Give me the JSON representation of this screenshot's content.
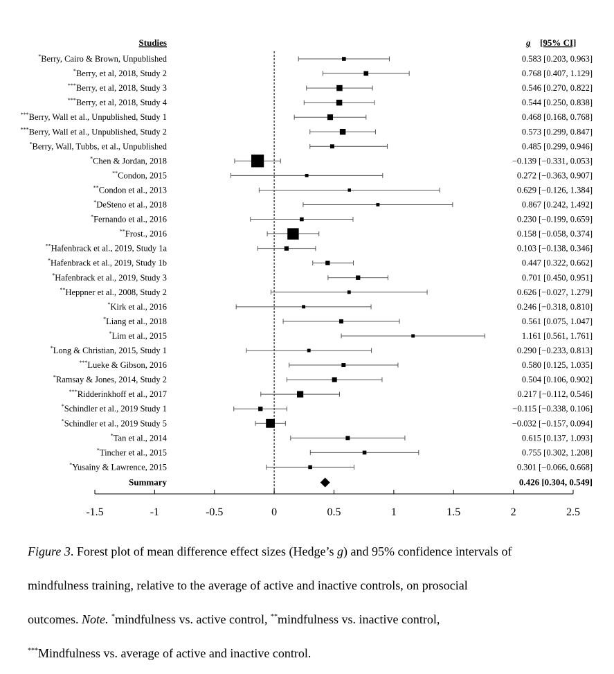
{
  "chart_data": {
    "type": "forest",
    "header": {
      "studies": "Studies",
      "g": "g",
      "ci": "[95% CI]"
    },
    "rows": [
      {
        "mark": "*",
        "name": "Berry, Cairo & Brown, Unpublished",
        "g": 0.583,
        "lo": 0.203,
        "hi": 0.963,
        "stat": "0.583 [0.203, 0.963]",
        "weight": 1.0
      },
      {
        "mark": "*",
        "name": "Berry, et al, 2018, Study 2",
        "g": 0.768,
        "lo": 0.407,
        "hi": 1.129,
        "stat": "0.768 [0.407, 1.129]",
        "weight": 1.3
      },
      {
        "mark": "***",
        "name": "Berry, et al, 2018, Study 3",
        "g": 0.546,
        "lo": 0.27,
        "hi": 0.822,
        "stat": "0.546 [0.270, 0.822]",
        "weight": 1.8
      },
      {
        "mark": "***",
        "name": "Berry, et al, 2018, Study 4",
        "g": 0.544,
        "lo": 0.25,
        "hi": 0.838,
        "stat": "0.544 [0.250, 0.838]",
        "weight": 1.8
      },
      {
        "mark": "***",
        "name": "Berry, Wall et al., Unpublished, Study 1",
        "g": 0.468,
        "lo": 0.168,
        "hi": 0.768,
        "stat": "0.468 [0.168, 0.768]",
        "weight": 1.7
      },
      {
        "mark": "***",
        "name": "Berry, Wall et al., Unpublished, Study 2",
        "g": 0.573,
        "lo": 0.299,
        "hi": 0.847,
        "stat": "0.573 [0.299, 0.847]",
        "weight": 1.8
      },
      {
        "mark": "*",
        "name": "Berry, Wall, Tubbs, et al., Unpublished",
        "g": 0.485,
        "lo": 0.299,
        "hi": 0.946,
        "stat": "0.485 [0.299, 0.946]",
        "weight": 1.1
      },
      {
        "mark": "*",
        "name": "Chen & Jordan, 2018",
        "g": -0.139,
        "lo": -0.331,
        "hi": 0.053,
        "stat": "−0.139 [−0.331, 0.053]",
        "weight": 4.5
      },
      {
        "mark": "**",
        "name": "Condon, 2015",
        "g": 0.272,
        "lo": -0.363,
        "hi": 0.907,
        "stat": "0.272 [−0.363, 0.907]",
        "weight": 0.8
      },
      {
        "mark": "**",
        "name": "Condon et al., 2013",
        "g": 0.629,
        "lo": -0.126,
        "hi": 1.384,
        "stat": "0.629 [−0.126, 1.384]",
        "weight": 0.7
      },
      {
        "mark": "*",
        "name": "DeSteno et al., 2018",
        "g": 0.867,
        "lo": 0.242,
        "hi": 1.492,
        "stat": "0.867 [0.242, 1.492]",
        "weight": 0.8
      },
      {
        "mark": "*",
        "name": "Fernando et al., 2016",
        "g": 0.23,
        "lo": -0.199,
        "hi": 0.659,
        "stat": "0.230 [−0.199, 0.659]",
        "weight": 1.0
      },
      {
        "mark": "**",
        "name": "Frost., 2016",
        "g": 0.158,
        "lo": -0.058,
        "hi": 0.374,
        "stat": "0.158 [−0.058, 0.374]",
        "weight": 4.0
      },
      {
        "mark": "**",
        "name": "Hafenbrack et al., 2019, Study 1a",
        "g": 0.103,
        "lo": -0.138,
        "hi": 0.346,
        "stat": "0.103 [−0.138, 0.346]",
        "weight": 1.2
      },
      {
        "mark": "*",
        "name": "Hafenbrack et al., 2019, Study 1b",
        "g": 0.447,
        "lo": 0.322,
        "hi": 0.662,
        "stat": "0.447 [0.322, 0.662]",
        "weight": 1.2
      },
      {
        "mark": "*",
        "name": "Hafenbrack et al., 2019, Study 3",
        "g": 0.701,
        "lo": 0.45,
        "hi": 0.951,
        "stat": "0.701 [0.450, 0.951]",
        "weight": 1.2
      },
      {
        "mark": "**",
        "name": "Heppner et al., 2008, Study 2",
        "g": 0.626,
        "lo": -0.027,
        "hi": 1.279,
        "stat": "0.626 [−0.027, 1.279]",
        "weight": 0.8
      },
      {
        "mark": "*",
        "name": "Kirk et al., 2016",
        "g": 0.246,
        "lo": -0.318,
        "hi": 0.81,
        "stat": "0.246 [−0.318, 0.810]",
        "weight": 0.8
      },
      {
        "mark": "*",
        "name": "Liang et al., 2018",
        "g": 0.561,
        "lo": 0.075,
        "hi": 1.047,
        "stat": "0.561 [0.075, 1.047]",
        "weight": 1.1
      },
      {
        "mark": "*",
        "name": "Lim et al., 2015",
        "g": 1.161,
        "lo": 0.561,
        "hi": 1.761,
        "stat": "1.161 [0.561, 1.761]",
        "weight": 0.8
      },
      {
        "mark": "*",
        "name": "Long & Christian, 2015, Study 1",
        "g": 0.29,
        "lo": -0.233,
        "hi": 0.813,
        "stat": "0.290 [−0.233, 0.813]",
        "weight": 0.8
      },
      {
        "mark": "***",
        "name": "Lueke & Gibson, 2016",
        "g": 0.58,
        "lo": 0.125,
        "hi": 1.035,
        "stat": "0.580 [0.125, 1.035]",
        "weight": 1.1
      },
      {
        "mark": "*",
        "name": "Ramsay & Jones, 2014, Study 2",
        "g": 0.504,
        "lo": 0.106,
        "hi": 0.902,
        "stat": "0.504 [0.106, 0.902]",
        "weight": 1.4
      },
      {
        "mark": "***",
        "name": "Ridderinkhoff et al., 2017",
        "g": 0.217,
        "lo": -0.112,
        "hi": 0.546,
        "stat": "0.217 [−0.112, 0.546]",
        "weight": 2.0
      },
      {
        "mark": "*",
        "name": "Schindler et al., 2019 Study 1",
        "g": -0.115,
        "lo": -0.338,
        "hi": 0.106,
        "stat": "−0.115 [−0.338, 0.106]",
        "weight": 1.2
      },
      {
        "mark": "*",
        "name": "Schindler et al., 2019 Study 5",
        "g": -0.032,
        "lo": -0.157,
        "hi": 0.094,
        "stat": "−0.032 [−0.157, 0.094]",
        "weight": 3.0
      },
      {
        "mark": "*",
        "name": "Tan et al., 2014",
        "g": 0.615,
        "lo": 0.137,
        "hi": 1.093,
        "stat": "0.615 [0.137, 1.093]",
        "weight": 1.1
      },
      {
        "mark": "*",
        "name": "Tincher et al., 2015",
        "g": 0.755,
        "lo": 0.302,
        "hi": 1.208,
        "stat": "0.755 [0.302, 1.208]",
        "weight": 1.0
      },
      {
        "mark": "*",
        "name": "Yusainy & Lawrence, 2015",
        "g": 0.301,
        "lo": -0.066,
        "hi": 0.668,
        "stat": "0.301 [−0.066, 0.668]",
        "weight": 1.0
      }
    ],
    "summary": {
      "name": "Summary",
      "g": 0.426,
      "lo": 0.304,
      "hi": 0.549,
      "stat": "0.426 [0.304, 0.549]"
    },
    "xlim": [
      -1.5,
      2.5
    ],
    "xticks": [
      -1.5,
      -1,
      -0.5,
      0,
      0.5,
      1,
      1.5,
      2,
      2.5
    ],
    "xtick_labels": [
      "-1.5",
      "-1",
      "-0.5",
      "0",
      "0.5",
      "1",
      "1.5",
      "2",
      "2.5"
    ],
    "reference_line": 0
  },
  "caption": {
    "figure_label": "Figure 3",
    "line1_rest": ". Forest plot of mean difference effect sizes (Hedge’s ",
    "g_symbol": "g",
    "line1_end": ") and 95% confidence intervals of",
    "line2": "mindfulness training, relative to the average of active and inactive controls, on prosocial",
    "line3_a": "outcomes. ",
    "note_label": "Note.",
    "note_mark1": "*",
    "note_text1": "mindfulness vs. active control, ",
    "note_mark2": "**",
    "note_text2": "mindfulness vs. inactive control,",
    "note_mark3": "***",
    "note_text3": "Mindfulness vs. average of active and inactive control."
  }
}
